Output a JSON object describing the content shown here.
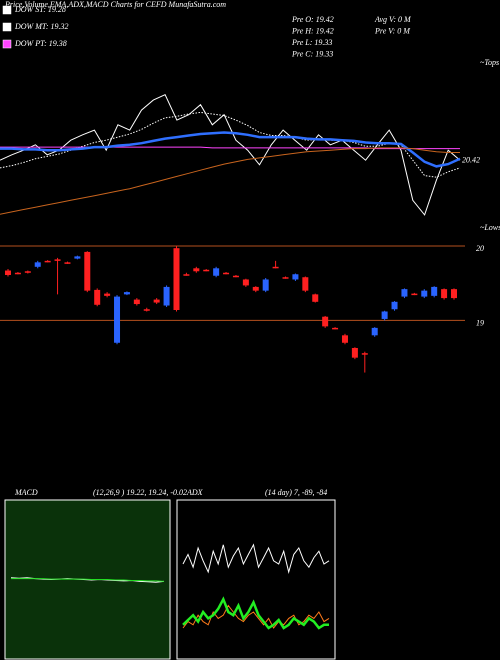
{
  "chart_data": [
    {
      "type": "line",
      "title": "Price,Volume,EMA,ADX,MACD Charts for CEFD MunafaSutra.com",
      "info": [
        "Pre  O: 19.42",
        "Pre  H: 19.42",
        "Pre  L: 19.33",
        "Pre  C: 19.33",
        "Avg V: 0  M",
        "Pre  V: 0  M"
      ],
      "last_label": "20.42",
      "tops_label": "~Tops",
      "lows_label": "~Lows",
      "ylim": [
        19.3,
        21.7
      ],
      "series": [
        {
          "name": "DOW ST: 19.28",
          "color": "#ffffff",
          "style": "solid",
          "values": [
            20.4,
            20.47,
            20.53,
            20.6,
            20.47,
            20.53,
            20.66,
            20.73,
            20.79,
            20.53,
            20.86,
            20.79,
            21.05,
            21.18,
            21.25,
            20.92,
            20.99,
            21.12,
            20.86,
            20.99,
            20.66,
            20.53,
            20.34,
            20.6,
            20.79,
            20.66,
            20.53,
            20.73,
            20.6,
            20.66,
            20.53,
            20.4,
            20.6,
            20.79,
            20.53,
            19.88,
            19.69,
            20.14,
            20.53,
            20.4
          ]
        },
        {
          "name": "DOW MT: 19.32",
          "color": "#ffffff",
          "style": "dotted",
          "values": [
            20.3,
            20.33,
            20.37,
            20.42,
            20.45,
            20.48,
            20.53,
            20.58,
            20.63,
            20.66,
            20.7,
            20.74,
            20.8,
            20.88,
            20.95,
            20.97,
            21.0,
            21.02,
            21.0,
            20.98,
            20.92,
            20.85,
            20.76,
            20.72,
            20.72,
            20.7,
            20.66,
            20.67,
            20.66,
            20.66,
            20.63,
            20.58,
            20.58,
            20.62,
            20.6,
            20.4,
            20.2,
            20.18,
            20.25,
            20.3
          ]
        },
        {
          "name": "DOW PT: 19.38",
          "color": "#ff44ff",
          "style": "solid",
          "values": [
            20.57,
            20.57,
            20.57,
            20.57,
            20.57,
            20.57,
            20.57,
            20.57,
            20.57,
            20.57,
            20.57,
            20.57,
            20.57,
            20.57,
            20.57,
            20.57,
            20.57,
            20.57,
            20.56,
            20.56,
            20.56,
            20.56,
            20.56,
            20.56,
            20.56,
            20.56,
            20.56,
            20.56,
            20.56,
            20.56,
            20.56,
            20.56,
            20.55,
            20.55,
            20.55,
            20.55,
            20.55,
            20.55,
            20.55,
            20.55
          ]
        },
        {
          "color": "#2f6fff",
          "style": "thick",
          "values": [
            20.55,
            20.55,
            20.54,
            20.54,
            20.53,
            20.53,
            20.54,
            20.55,
            20.57,
            20.57,
            20.59,
            20.6,
            20.62,
            20.65,
            20.68,
            20.7,
            20.72,
            20.74,
            20.75,
            20.76,
            20.75,
            20.73,
            20.7,
            20.7,
            20.7,
            20.7,
            20.68,
            20.67,
            20.67,
            20.66,
            20.65,
            20.63,
            20.62,
            20.62,
            20.61,
            20.5,
            20.38,
            20.32,
            20.35,
            20.42
          ]
        },
        {
          "color": "#c8641e",
          "style": "solid",
          "values": [
            19.7,
            19.73,
            19.76,
            19.79,
            19.82,
            19.85,
            19.88,
            19.91,
            19.94,
            19.97,
            20.0,
            20.03,
            20.07,
            20.11,
            20.15,
            20.19,
            20.23,
            20.27,
            20.31,
            20.35,
            20.38,
            20.41,
            20.43,
            20.45,
            20.47,
            20.49,
            20.51,
            20.52,
            20.53,
            20.54,
            20.55,
            20.55,
            20.56,
            20.56,
            20.56,
            20.55,
            20.53,
            20.51,
            20.5,
            20.5
          ]
        }
      ]
    },
    {
      "type": "candlestick",
      "ylim": [
        18.2,
        20.08
      ],
      "yticks": [
        19,
        20
      ],
      "up_color": "#2a64ff",
      "down_color": "#ff2020",
      "grid_color": "#b4501e",
      "open": [
        19.67,
        19.64,
        19.66,
        19.72,
        19.8,
        19.82,
        19.78,
        19.83,
        19.92,
        19.41,
        19.36,
        18.7,
        19.35,
        19.28,
        19.15,
        19.28,
        19.2,
        19.97,
        19.62,
        19.7,
        19.68,
        19.6,
        19.64,
        19.6,
        19.55,
        19.45,
        19.4,
        19.72,
        19.58,
        19.55,
        19.58,
        19.35,
        19.05,
        18.9,
        18.8,
        18.63,
        18.56,
        18.8,
        19.02,
        19.15,
        19.32,
        19.36,
        19.32,
        19.33,
        19.42,
        19.42
      ],
      "close": [
        19.61,
        19.63,
        19.64,
        19.78,
        19.79,
        19.8,
        19.77,
        19.86,
        19.4,
        19.21,
        19.33,
        19.32,
        19.38,
        19.22,
        19.14,
        19.24,
        19.45,
        19.14,
        19.61,
        19.66,
        19.67,
        19.7,
        19.63,
        19.59,
        19.47,
        19.4,
        19.55,
        19.71,
        19.57,
        19.62,
        19.4,
        19.25,
        18.92,
        18.89,
        18.7,
        18.5,
        18.55,
        18.9,
        19.12,
        19.25,
        19.42,
        19.35,
        19.4,
        19.45,
        19.3,
        19.3
      ],
      "high": [
        19.69,
        19.65,
        19.67,
        19.8,
        19.81,
        19.84,
        19.79,
        19.87,
        19.93,
        19.43,
        19.38,
        19.34,
        19.39,
        19.3,
        19.17,
        19.3,
        19.47,
        20.0,
        19.64,
        19.72,
        19.69,
        19.72,
        19.65,
        19.61,
        19.56,
        19.46,
        19.57,
        19.8,
        19.59,
        19.63,
        19.59,
        19.36,
        19.06,
        18.91,
        18.82,
        18.64,
        18.58,
        18.91,
        19.13,
        19.26,
        19.43,
        19.37,
        19.42,
        19.46,
        19.43,
        19.43
      ],
      "low": [
        19.59,
        19.62,
        19.63,
        19.7,
        19.78,
        19.35,
        19.76,
        19.82,
        19.38,
        19.19,
        19.31,
        18.68,
        19.34,
        19.2,
        19.12,
        19.22,
        19.18,
        19.12,
        19.6,
        19.64,
        19.66,
        19.58,
        19.62,
        19.58,
        19.45,
        19.38,
        19.38,
        19.7,
        19.56,
        19.53,
        19.38,
        19.24,
        18.9,
        18.88,
        18.68,
        18.48,
        18.3,
        18.78,
        19.0,
        19.13,
        19.3,
        19.34,
        19.3,
        19.31,
        19.28,
        19.28
      ]
    },
    {
      "type": "line",
      "title": "MACD",
      "subtitle": "(12,26,9 ) 19.22, 19.24, -0.02",
      "ylim": [
        17.5,
        21.0
      ],
      "background": "#0a320a",
      "series": [
        {
          "color": "#ffffff",
          "style": "solid",
          "values": [
            19.3,
            19.29,
            19.3,
            19.28,
            19.27,
            19.26,
            19.27,
            19.28,
            19.27,
            19.26,
            19.25,
            19.26,
            19.25,
            19.24,
            19.23,
            19.24,
            19.22,
            19.21,
            19.2,
            19.22
          ]
        },
        {
          "color": "#22dd22",
          "style": "solid",
          "values": [
            19.28,
            19.28,
            19.28,
            19.28,
            19.28,
            19.27,
            19.27,
            19.27,
            19.27,
            19.27,
            19.26,
            19.26,
            19.26,
            19.25,
            19.25,
            19.24,
            19.24,
            19.23,
            19.23,
            19.22
          ]
        }
      ]
    },
    {
      "type": "line",
      "title": "ADX",
      "subtitle": "(14 day) 7, -89, -84",
      "ylim": [
        0,
        100
      ],
      "background": "#000000",
      "series": [
        {
          "color": "#ffffff",
          "style": "solid",
          "values": [
            60,
            66,
            58,
            70,
            62,
            55,
            68,
            60,
            72,
            58,
            65,
            70,
            60,
            66,
            72,
            58,
            64,
            70,
            62,
            60,
            68,
            55,
            66,
            70,
            62,
            58,
            64,
            68,
            60,
            62
          ]
        },
        {
          "color": "#ff7a1a",
          "style": "solid",
          "values": [
            20,
            24,
            22,
            28,
            24,
            22,
            30,
            26,
            28,
            34,
            30,
            26,
            24,
            28,
            30,
            26,
            22,
            26,
            20,
            24,
            22,
            26,
            28,
            22,
            24,
            28,
            26,
            30,
            24,
            26
          ]
        },
        {
          "color": "#22ee22",
          "style": "thick",
          "values": [
            22,
            25,
            28,
            24,
            30,
            26,
            28,
            32,
            38,
            30,
            28,
            34,
            26,
            30,
            36,
            28,
            24,
            20,
            22,
            25,
            20,
            22,
            26,
            24,
            22,
            26,
            24,
            20,
            22,
            22
          ]
        }
      ]
    }
  ]
}
